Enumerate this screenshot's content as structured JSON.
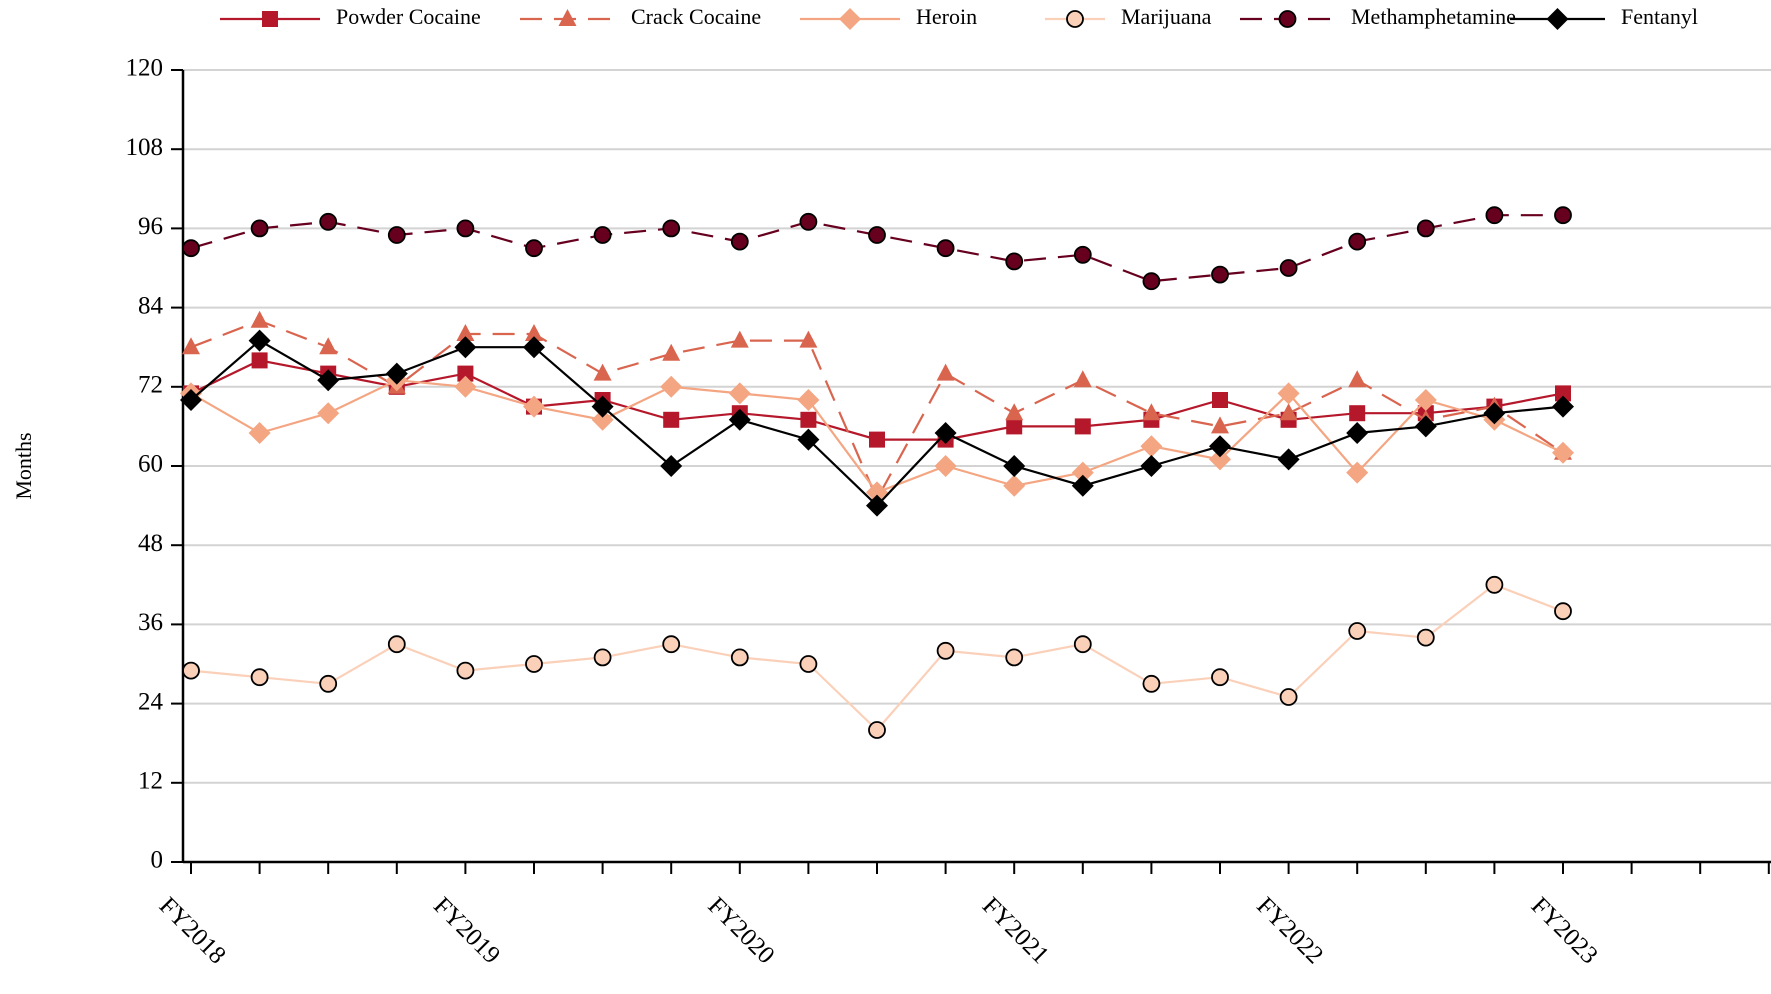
{
  "chart_data": {
    "type": "line",
    "y_label": "Months",
    "categories": [
      "FY2018",
      null,
      null,
      null,
      "FY2019",
      null,
      null,
      null,
      "FY2020",
      null,
      null,
      null,
      "FY2021",
      null,
      null,
      null,
      "FY2022",
      null,
      null,
      null,
      "FY2023",
      null,
      null,
      null
    ],
    "ylim": [
      0,
      120
    ],
    "yticks": [
      0,
      12,
      24,
      36,
      48,
      60,
      72,
      84,
      96,
      108,
      120
    ],
    "grid": true,
    "series": [
      {
        "name": "Powder Cocaine",
        "color": "#b5182b",
        "marker": "square",
        "dash": "solid",
        "values": [
          71,
          76,
          74,
          72,
          74,
          69,
          70,
          67,
          68,
          67,
          64,
          64,
          66,
          66,
          67,
          70,
          67,
          68,
          68,
          69,
          71,
          null,
          null,
          null
        ]
      },
      {
        "name": "Crack Cocaine",
        "color": "#d9654f",
        "marker": "triangle",
        "dash": "dashed",
        "values": [
          78,
          82,
          78,
          72,
          80,
          80,
          74,
          77,
          79,
          79,
          55,
          74,
          68,
          73,
          68,
          66,
          68,
          73,
          67,
          69,
          62,
          null,
          null,
          null
        ]
      },
      {
        "name": "Heroin",
        "color": "#f4a582",
        "marker": "diamond",
        "dash": "solid",
        "values": [
          71,
          65,
          68,
          73,
          72,
          69,
          67,
          72,
          71,
          70,
          56,
          60,
          57,
          59,
          63,
          61,
          71,
          59,
          70,
          67,
          62,
          null,
          null,
          null
        ]
      },
      {
        "name": "Marijuana",
        "color": "#fbd0b9",
        "marker": "circle",
        "dash": "solid",
        "values": [
          29,
          28,
          27,
          33,
          29,
          30,
          31,
          33,
          31,
          30,
          20,
          32,
          31,
          33,
          27,
          28,
          25,
          35,
          34,
          42,
          38,
          null,
          null,
          null
        ]
      },
      {
        "name": "Methamphetamine",
        "color": "#67001f",
        "marker": "circle",
        "dash": "dashed",
        "values": [
          93,
          96,
          97,
          95,
          96,
          93,
          95,
          96,
          94,
          97,
          95,
          93,
          91,
          92,
          88,
          89,
          90,
          94,
          96,
          98,
          98,
          null,
          null,
          null
        ]
      },
      {
        "name": "Fentanyl",
        "color": "#000000",
        "marker": "diamond",
        "dash": "solid",
        "values": [
          70,
          79,
          73,
          74,
          78,
          78,
          69,
          60,
          67,
          64,
          54,
          65,
          60,
          57,
          60,
          63,
          61,
          65,
          66,
          68,
          69,
          null,
          null,
          null
        ]
      }
    ]
  }
}
